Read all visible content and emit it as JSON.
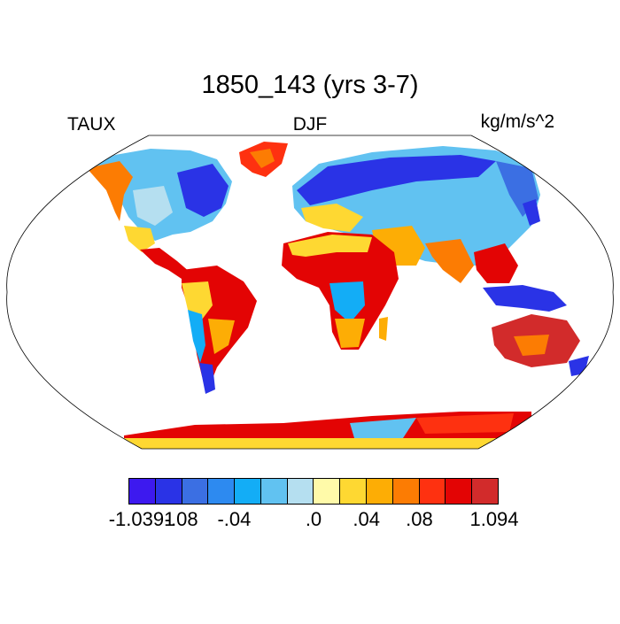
{
  "header": {
    "title": "1850_143 (yrs 3-7)",
    "left_label": "TAUX",
    "center_label": "DJF",
    "right_label": "kg/m/s^2"
  },
  "colorbar": {
    "colors": [
      "#3d19ef",
      "#2a33e6",
      "#3b6fe3",
      "#2d8af0",
      "#13adf6",
      "#61c2f1",
      "#b5dff0",
      "#fffaa9",
      "#fed832",
      "#fdad05",
      "#fc7c03",
      "#fe3110",
      "#e30404",
      "#d22b2b"
    ],
    "labels": [
      "-1.0391",
      "-.08",
      "-.04",
      ".0",
      ".04",
      ".08",
      "1.094"
    ]
  },
  "map": {
    "projection": "Robinson",
    "palette": {
      "ocean": "#ffffff",
      "outline": "#000000"
    }
  }
}
